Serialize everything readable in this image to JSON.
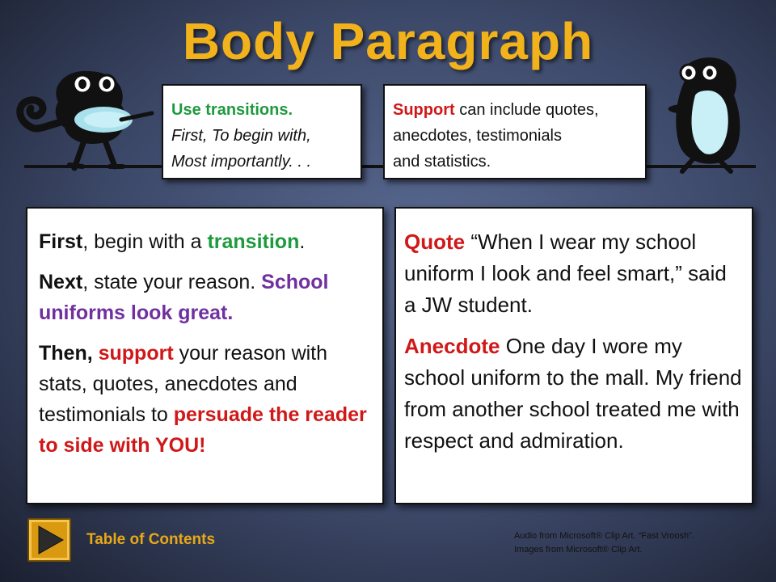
{
  "slide": {
    "title": "Body Paragraph"
  },
  "bubble_left": {
    "line1": "Use transitions.",
    "line2": "First, To begin with,",
    "line3": "Most importantly. . ."
  },
  "bubble_right": {
    "support_word": "Support",
    "text1": " can include quotes,",
    "line2": "anecdotes, testimonials",
    "line3": "and statistics."
  },
  "left_box": {
    "p1_bold": "First",
    "p1_text": ", begin with a ",
    "p1_green": "transition",
    "p1_end": ".",
    "p2_bold": "Next",
    "p2_text": ", state your reason. ",
    "p2_purple": "School uniforms look great.",
    "p3_bold": "Then, ",
    "p3_red": "support",
    "p3_text": " your reason with stats, quotes, anecdotes and testimonials to ",
    "p3_red2": "persuade the reader to side with YOU!"
  },
  "right_box": {
    "quote_label": "Quote",
    "quote_text": "  “When I wear my school uniform I look and feel smart,” said a JW student.",
    "anecdote_label": "Anecdote",
    "anecdote_text": "  One day I wore my school uniform to the mall. My friend from another school treated me with respect and admiration."
  },
  "footer": {
    "toc_label": "Table of Contents",
    "credit_line1": "Audio from Microsoft® Clip Art. “Fast Vroosh”.",
    "credit_line2": "Images from Microsoft® Clip Art."
  },
  "colors": {
    "title": "#f2b21b",
    "green": "#1e9a3e",
    "red": "#d01818",
    "purple": "#7030a0",
    "toc": "#e8a818"
  }
}
